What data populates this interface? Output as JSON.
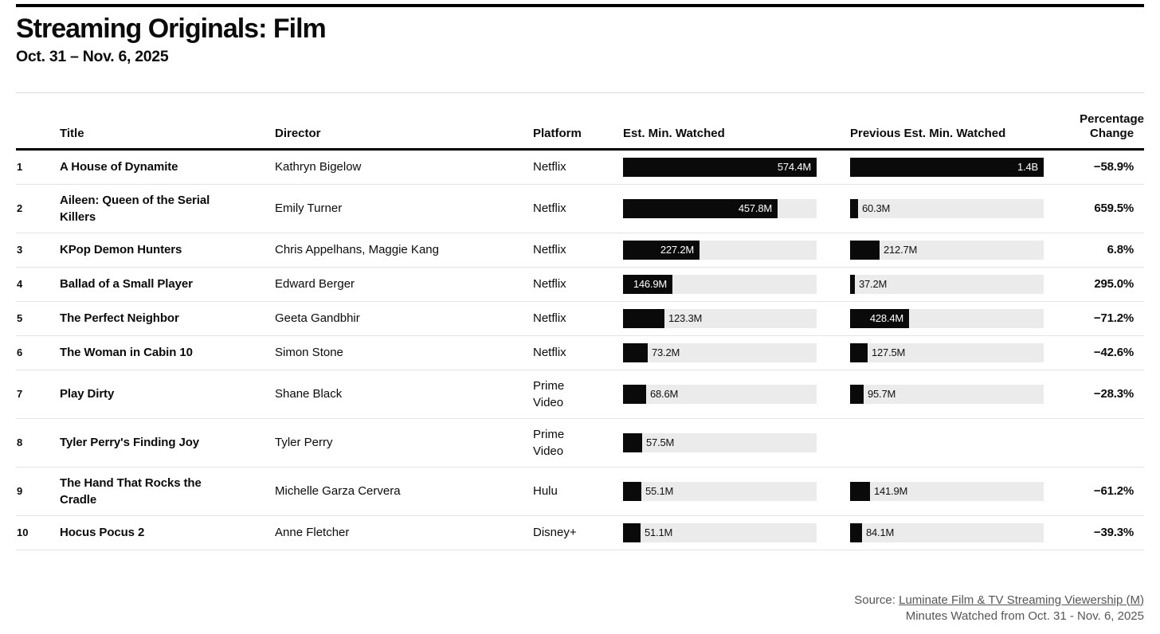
{
  "header": {
    "title": "Streaming Originals: Film",
    "subtitle": "Oct. 31 – Nov. 6, 2025"
  },
  "table_columns": {
    "title": "Title",
    "director": "Director",
    "platform": "Platform",
    "est": "Est. Min. Watched",
    "prev": "Previous Est. Min. Watched",
    "pct_line1": "Percentage",
    "pct_line2": "Change"
  },
  "chart_data": {
    "type": "bar",
    "title": "Streaming Originals: Film",
    "subtitle": "Oct. 31 – Nov. 6, 2025",
    "legend_position": "none",
    "bar_scale_max": {
      "est_min_watched_millions": 574.4,
      "previous_est_min_watched_millions": 1400
    },
    "rows": [
      {
        "rank": "1",
        "title": "A House of Dynamite",
        "director": "Kathryn Bigelow",
        "platform": "Netflix",
        "est_label": "574.4M",
        "est_value": 574.4,
        "prev_label": "1.4B",
        "prev_value": 1400,
        "pct_change": "−58.9%"
      },
      {
        "rank": "2",
        "title": "Aileen: Queen of the Serial Killers",
        "director": "Emily Turner",
        "platform": "Netflix",
        "est_label": "457.8M",
        "est_value": 457.8,
        "prev_label": "60.3M",
        "prev_value": 60.3,
        "pct_change": "659.5%"
      },
      {
        "rank": "3",
        "title": "KPop Demon Hunters",
        "director": "Chris Appelhans, Maggie Kang",
        "platform": "Netflix",
        "est_label": "227.2M",
        "est_value": 227.2,
        "prev_label": "212.7M",
        "prev_value": 212.7,
        "pct_change": "6.8%"
      },
      {
        "rank": "4",
        "title": "Ballad of a Small Player",
        "director": "Edward Berger",
        "platform": "Netflix",
        "est_label": "146.9M",
        "est_value": 146.9,
        "prev_label": "37.2M",
        "prev_value": 37.2,
        "pct_change": "295.0%"
      },
      {
        "rank": "5",
        "title": "The Perfect Neighbor",
        "director": "Geeta Gandbhir",
        "platform": "Netflix",
        "est_label": "123.3M",
        "est_value": 123.3,
        "prev_label": "428.4M",
        "prev_value": 428.4,
        "pct_change": "−71.2%"
      },
      {
        "rank": "6",
        "title": "The Woman in Cabin 10",
        "director": "Simon Stone",
        "platform": "Netflix",
        "est_label": "73.2M",
        "est_value": 73.2,
        "prev_label": "127.5M",
        "prev_value": 127.5,
        "pct_change": "−42.6%"
      },
      {
        "rank": "7",
        "title": "Play Dirty",
        "director": "Shane Black",
        "platform": "Prime Video",
        "est_label": "68.6M",
        "est_value": 68.6,
        "prev_label": "95.7M",
        "prev_value": 95.7,
        "pct_change": "−28.3%"
      },
      {
        "rank": "8",
        "title": "Tyler Perry's Finding Joy",
        "director": "Tyler Perry",
        "platform": "Prime Video",
        "est_label": "57.5M",
        "est_value": 57.5,
        "prev_label": null,
        "prev_value": null,
        "pct_change": ""
      },
      {
        "rank": "9",
        "title": "The Hand That Rocks the Cradle",
        "director": "Michelle Garza Cervera",
        "platform": "Hulu",
        "est_label": "55.1M",
        "est_value": 55.1,
        "prev_label": "141.9M",
        "prev_value": 141.9,
        "pct_change": "−61.2%"
      },
      {
        "rank": "10",
        "title": "Hocus Pocus 2",
        "director": "Anne Fletcher",
        "platform": "Disney+",
        "est_label": "51.1M",
        "est_value": 51.1,
        "prev_label": "84.1M",
        "prev_value": 84.1,
        "pct_change": "−39.3%"
      }
    ]
  },
  "footer": {
    "source_prefix": "Source: ",
    "source_link": "Luminate Film & TV Streaming Viewership (M)",
    "note": "Minutes Watched from Oct. 31 - Nov. 6, 2025"
  },
  "colors": {
    "bar_fill": "#0a0a0a",
    "bar_track": "#ebebeb",
    "rule_black": "#000000",
    "row_divider": "#e3e3e3",
    "footer_text": "#565656"
  }
}
